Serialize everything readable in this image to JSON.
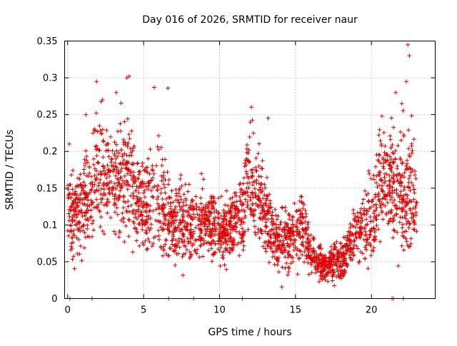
{
  "chart_data": {
    "type": "scatter",
    "title": "Day 016 of 2026, SRMTID for receiver naur",
    "xlabel": "GPS time / hours",
    "ylabel": "SRMTID / TECUs",
    "xlim": [
      -0.2,
      24.2
    ],
    "ylim": [
      0,
      0.35
    ],
    "xticks": [
      0,
      5,
      10,
      15,
      20
    ],
    "xtick_labels": [
      "0",
      "5",
      "10",
      "15",
      "20"
    ],
    "yticks": [
      0,
      0.05,
      0.1,
      0.15,
      0.2,
      0.25,
      0.3,
      0.35
    ],
    "ytick_labels": [
      "0",
      "0.05",
      "0.1",
      "0.15",
      "0.2",
      "0.25",
      "0.3",
      "0.35"
    ],
    "grid": true,
    "marker": "+",
    "color": "#e00000",
    "series": [
      {
        "name": "SRMTID",
        "profile_hours": [
          0,
          0.5,
          1,
          1.5,
          2,
          2.5,
          3,
          3.5,
          4,
          4.5,
          5,
          5.5,
          6,
          6.5,
          7,
          7.5,
          8,
          8.5,
          9,
          9.5,
          10,
          10.5,
          11,
          11.5,
          12,
          12.5,
          13,
          13.5,
          14,
          14.5,
          15,
          15.5,
          16,
          16.5,
          17,
          17.5,
          18,
          18.5,
          19,
          19.5,
          20,
          20.5,
          21,
          21.5,
          22,
          22.5,
          23
        ],
        "profile_mean": [
          0.12,
          0.115,
          0.13,
          0.14,
          0.17,
          0.175,
          0.155,
          0.16,
          0.17,
          0.135,
          0.12,
          0.14,
          0.13,
          0.115,
          0.1,
          0.105,
          0.1,
          0.095,
          0.11,
          0.1,
          0.09,
          0.095,
          0.105,
          0.115,
          0.16,
          0.14,
          0.115,
          0.085,
          0.075,
          0.08,
          0.09,
          0.105,
          0.06,
          0.05,
          0.045,
          0.05,
          0.055,
          0.07,
          0.09,
          0.1,
          0.105,
          0.16,
          0.165,
          0.155,
          0.14,
          0.15,
          0.13
        ],
        "profile_spread": [
          0.05,
          0.05,
          0.055,
          0.06,
          0.065,
          0.06,
          0.06,
          0.07,
          0.07,
          0.05,
          0.05,
          0.06,
          0.07,
          0.05,
          0.04,
          0.045,
          0.04,
          0.04,
          0.045,
          0.04,
          0.035,
          0.04,
          0.04,
          0.05,
          0.06,
          0.06,
          0.05,
          0.035,
          0.035,
          0.04,
          0.04,
          0.04,
          0.025,
          0.02,
          0.02,
          0.025,
          0.025,
          0.03,
          0.035,
          0.04,
          0.05,
          0.06,
          0.065,
          0.065,
          0.07,
          0.08,
          0.05
        ],
        "points_per_hour": 110,
        "peak_points": [
          [
            0.1,
            0.21
          ],
          [
            1.2,
            0.25
          ],
          [
            1.9,
            0.295
          ],
          [
            2.3,
            0.27
          ],
          [
            3.2,
            0.28
          ],
          [
            3.9,
            0.3
          ],
          [
            4.05,
            0.302
          ],
          [
            5.7,
            0.287
          ],
          [
            6.6,
            0.286
          ],
          [
            12.1,
            0.26
          ],
          [
            13.2,
            0.245
          ],
          [
            21.6,
            0.28
          ],
          [
            22,
            0.265
          ],
          [
            22.3,
            0.295
          ],
          [
            22.4,
            0.345
          ],
          [
            22.5,
            0.33
          ]
        ],
        "zero_points": [
          0.15,
          1.6,
          6.65,
          8.3,
          11.5,
          21.35,
          21.45,
          22.1
        ]
      }
    ]
  }
}
